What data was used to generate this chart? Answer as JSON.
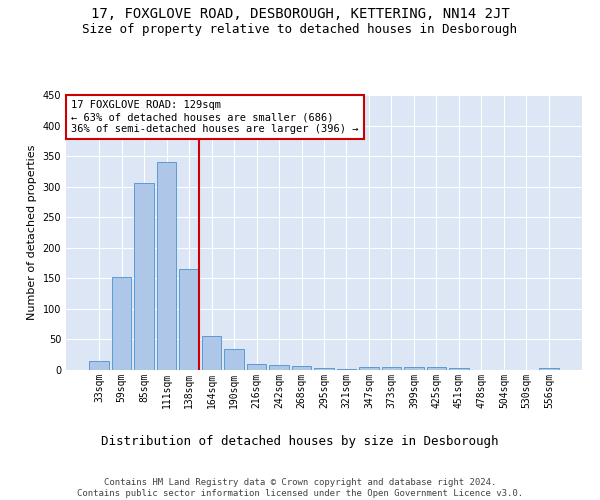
{
  "title": "17, FOXGLOVE ROAD, DESBOROUGH, KETTERING, NN14 2JT",
  "subtitle": "Size of property relative to detached houses in Desborough",
  "xlabel": "Distribution of detached houses by size in Desborough",
  "ylabel": "Number of detached properties",
  "categories": [
    "33sqm",
    "59sqm",
    "85sqm",
    "111sqm",
    "138sqm",
    "164sqm",
    "190sqm",
    "216sqm",
    "242sqm",
    "268sqm",
    "295sqm",
    "321sqm",
    "347sqm",
    "373sqm",
    "399sqm",
    "425sqm",
    "451sqm",
    "478sqm",
    "504sqm",
    "530sqm",
    "556sqm"
  ],
  "values": [
    15,
    152,
    306,
    341,
    166,
    56,
    34,
    10,
    9,
    6,
    3,
    2,
    5,
    5,
    5,
    5,
    4,
    0,
    0,
    0,
    4
  ],
  "bar_color": "#aec6e8",
  "bar_edge_color": "#5b9bd5",
  "background_color": "#ffffff",
  "plot_bg_color": "#dde6f5",
  "grid_color": "#ffffff",
  "vline_bin_index": 4,
  "vline_color": "#cc0000",
  "annotation_text": "17 FOXGLOVE ROAD: 129sqm\n← 63% of detached houses are smaller (686)\n36% of semi-detached houses are larger (396) →",
  "annotation_box_color": "#cc0000",
  "ylim": [
    0,
    450
  ],
  "yticks": [
    0,
    50,
    100,
    150,
    200,
    250,
    300,
    350,
    400,
    450
  ],
  "footnote": "Contains HM Land Registry data © Crown copyright and database right 2024.\nContains public sector information licensed under the Open Government Licence v3.0.",
  "title_fontsize": 10,
  "subtitle_fontsize": 9,
  "xlabel_fontsize": 9,
  "ylabel_fontsize": 8,
  "tick_fontsize": 7,
  "annotation_fontsize": 7.5,
  "footnote_fontsize": 6.5
}
